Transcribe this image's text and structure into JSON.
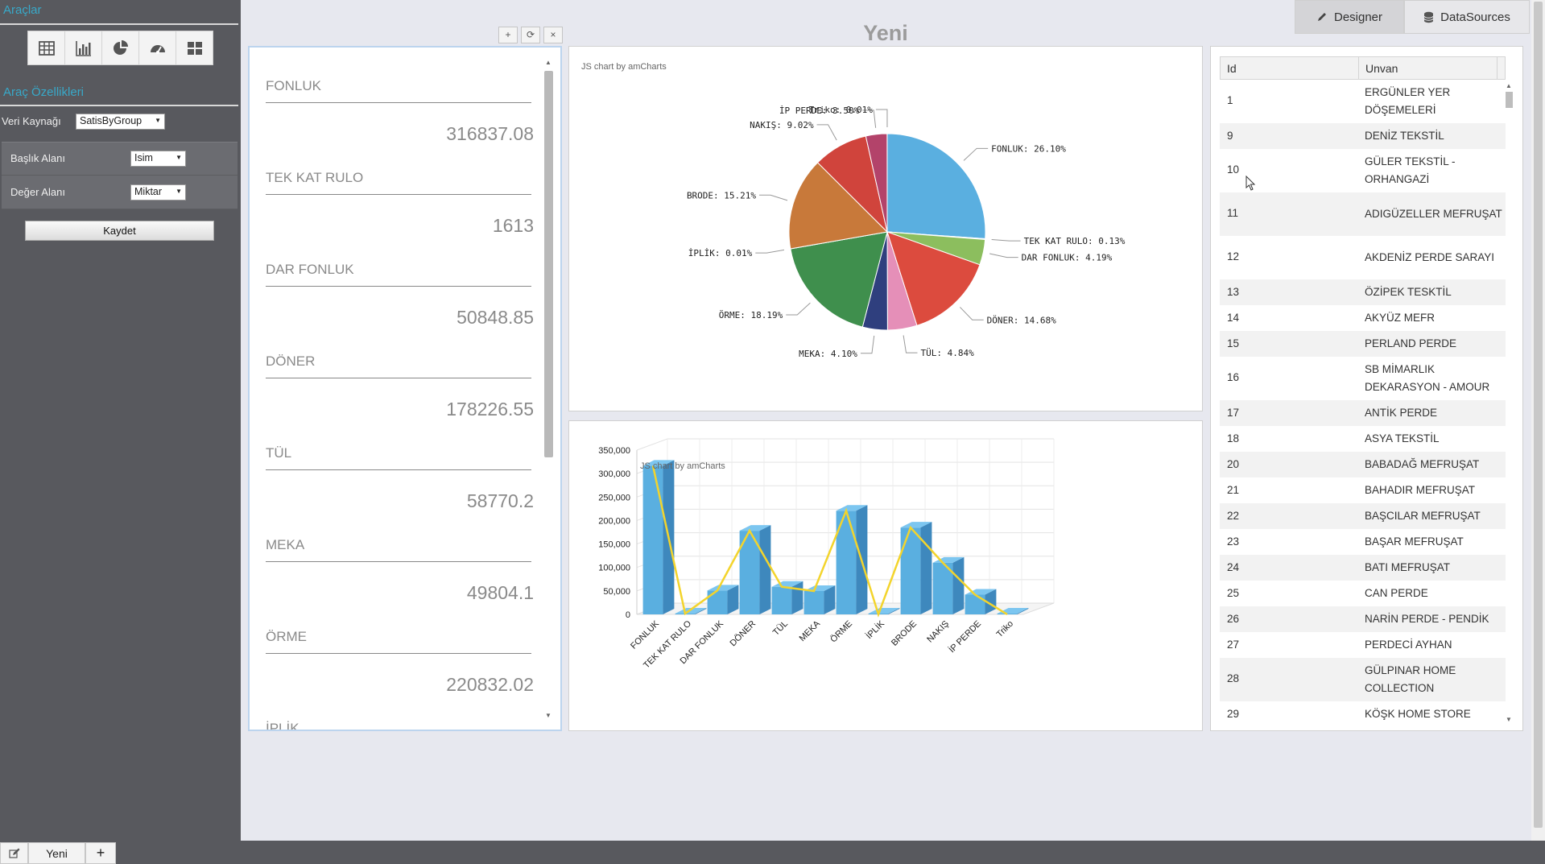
{
  "sidebar": {
    "tools_title": "Araçlar",
    "properties_title": "Araç Özellikleri",
    "datasource_label": "Veri Kaynağı",
    "datasource_value": "SatisByGroup",
    "title_field_label": "Başlık Alanı",
    "title_field_value": "Isim",
    "value_field_label": "Değer Alanı",
    "value_field_value": "Miktar",
    "save_label": "Kaydet",
    "tools": [
      "table-icon",
      "bar-chart-icon",
      "pie-chart-icon",
      "gauge-icon",
      "grid-icon"
    ]
  },
  "header": {
    "title": "Yeni",
    "designer_label": "Designer",
    "datasources_label": "DataSources"
  },
  "widget_controls": [
    "+",
    "⟳",
    "×"
  ],
  "metrics": [
    {
      "label": "FONLUK",
      "value": "316837.08"
    },
    {
      "label": "TEK KAT RULO",
      "value": "1613"
    },
    {
      "label": "DAR FONLUK",
      "value": "50848.85"
    },
    {
      "label": "DÖNER",
      "value": "178226.55"
    },
    {
      "label": "TÜL",
      "value": "58770.2"
    },
    {
      "label": "MEKA",
      "value": "49804.1"
    },
    {
      "label": "ÖRME",
      "value": "220832.02"
    },
    {
      "label": "İPLİK",
      "value": ""
    }
  ],
  "credit_text": "JS chart by amCharts",
  "chart_data": [
    {
      "type": "pie",
      "slices": [
        {
          "name": "FONLUK",
          "value": 26.1,
          "label": "FONLUK: 26.10%",
          "color": "#5aafe0"
        },
        {
          "name": "TEK KAT RULO",
          "value": 0.13,
          "label": "TEK KAT RULO: 0.13%",
          "color": "#6e9e44"
        },
        {
          "name": "DAR FONLUK",
          "value": 4.19,
          "label": "DAR FONLUK: 4.19%",
          "color": "#8cbe5e"
        },
        {
          "name": "DÖNER",
          "value": 14.68,
          "label": "DÖNER: 14.68%",
          "color": "#dc4b3e"
        },
        {
          "name": "TÜL",
          "value": 4.84,
          "label": "TÜL: 4.84%",
          "color": "#e58fb8"
        },
        {
          "name": "MEKA",
          "value": 4.1,
          "label": "MEKA: 4.10%",
          "color": "#2f3f7e"
        },
        {
          "name": "ÖRME",
          "value": 18.19,
          "label": "ÖRME: 18.19%",
          "color": "#3f8f4d"
        },
        {
          "name": "İPLİK",
          "value": 0.01,
          "label": "İPLİK: 0.01%",
          "color": "#6b9f3c"
        },
        {
          "name": "BRODE",
          "value": 15.21,
          "label": "BRODE: 15.21%",
          "color": "#c8793a"
        },
        {
          "name": "NAKIŞ",
          "value": 9.02,
          "label": "NAKIŞ: 9.02%",
          "color": "#d0443c"
        },
        {
          "name": "İP PERDE",
          "value": 3.5,
          "label": "İP PERDE: 3.50%",
          "color": "#b3436a"
        },
        {
          "name": "Triko",
          "value": 0.01,
          "label": "Triko: 0.01%",
          "color": "#7c2d57"
        }
      ]
    },
    {
      "type": "bar",
      "subtype": "3d-column-with-line",
      "categories": [
        "FONLUK",
        "TEK KAT RULO",
        "DAR FONLUK",
        "DÖNER",
        "TÜL",
        "MEKA",
        "ÖRME",
        "İPLİK",
        "BRODE",
        "NAKIŞ",
        "İP PERDE",
        "Triko"
      ],
      "values": [
        316837.08,
        1613,
        50848.85,
        178226.55,
        58770.2,
        49804.1,
        220832.02,
        15,
        185000,
        110000,
        42000,
        15
      ],
      "ylim": [
        0,
        350000
      ],
      "yticks": [
        "0",
        "50,000",
        "100,000",
        "150,000",
        "200,000",
        "250,000",
        "300,000",
        "350,000"
      ],
      "bar_color": "#5aafe0",
      "line_color": "#f3d42c",
      "grid": true
    }
  ],
  "grid": {
    "columns": [
      "Id",
      "Unvan"
    ],
    "rows": [
      {
        "id": "1",
        "unvan": "ERGÜNLER YER DÖŞEMELERİ",
        "h": 2
      },
      {
        "id": "9",
        "unvan": "DENİZ TEKSTİL",
        "h": 1
      },
      {
        "id": "10",
        "unvan": "GÜLER TEKSTİL - ORHANGAZİ",
        "h": 2
      },
      {
        "id": "11",
        "unvan": "ADIGÜZELLER MEFRUŞAT",
        "h": 2
      },
      {
        "id": "12",
        "unvan": "AKDENİZ PERDE SARAYI",
        "h": 2
      },
      {
        "id": "13",
        "unvan": "ÖZİPEK TESKTİL",
        "h": 1
      },
      {
        "id": "14",
        "unvan": "AKYÜZ MEFR",
        "h": 1
      },
      {
        "id": "15",
        "unvan": "PERLAND PERDE",
        "h": 1
      },
      {
        "id": "16",
        "unvan": "SB MİMARLIK DEKARASYON - AMOUR",
        "h": 2
      },
      {
        "id": "17",
        "unvan": "ANTİK PERDE",
        "h": 1
      },
      {
        "id": "18",
        "unvan": "ASYA TEKSTİL",
        "h": 1
      },
      {
        "id": "20",
        "unvan": "BABADAĞ MEFRUŞAT",
        "h": 1
      },
      {
        "id": "21",
        "unvan": "BAHADIR MEFRUŞAT",
        "h": 1
      },
      {
        "id": "22",
        "unvan": "BAŞCILAR MEFRUŞAT",
        "h": 1
      },
      {
        "id": "23",
        "unvan": "BAŞAR MEFRUŞAT",
        "h": 1
      },
      {
        "id": "24",
        "unvan": "BATI MEFRUŞAT",
        "h": 1
      },
      {
        "id": "25",
        "unvan": "CAN PERDE",
        "h": 1
      },
      {
        "id": "26",
        "unvan": "NARİN PERDE - PENDİK",
        "h": 1
      },
      {
        "id": "27",
        "unvan": "PERDECİ AYHAN",
        "h": 1
      },
      {
        "id": "28",
        "unvan": "GÜLPINAR HOME COLLECTION",
        "h": 2
      },
      {
        "id": "29",
        "unvan": "KÖŞK HOME STORE",
        "h": 1
      }
    ]
  },
  "taskbar": {
    "edit_icon": "edit-icon",
    "tab_label": "Yeni",
    "add_label": "+"
  }
}
